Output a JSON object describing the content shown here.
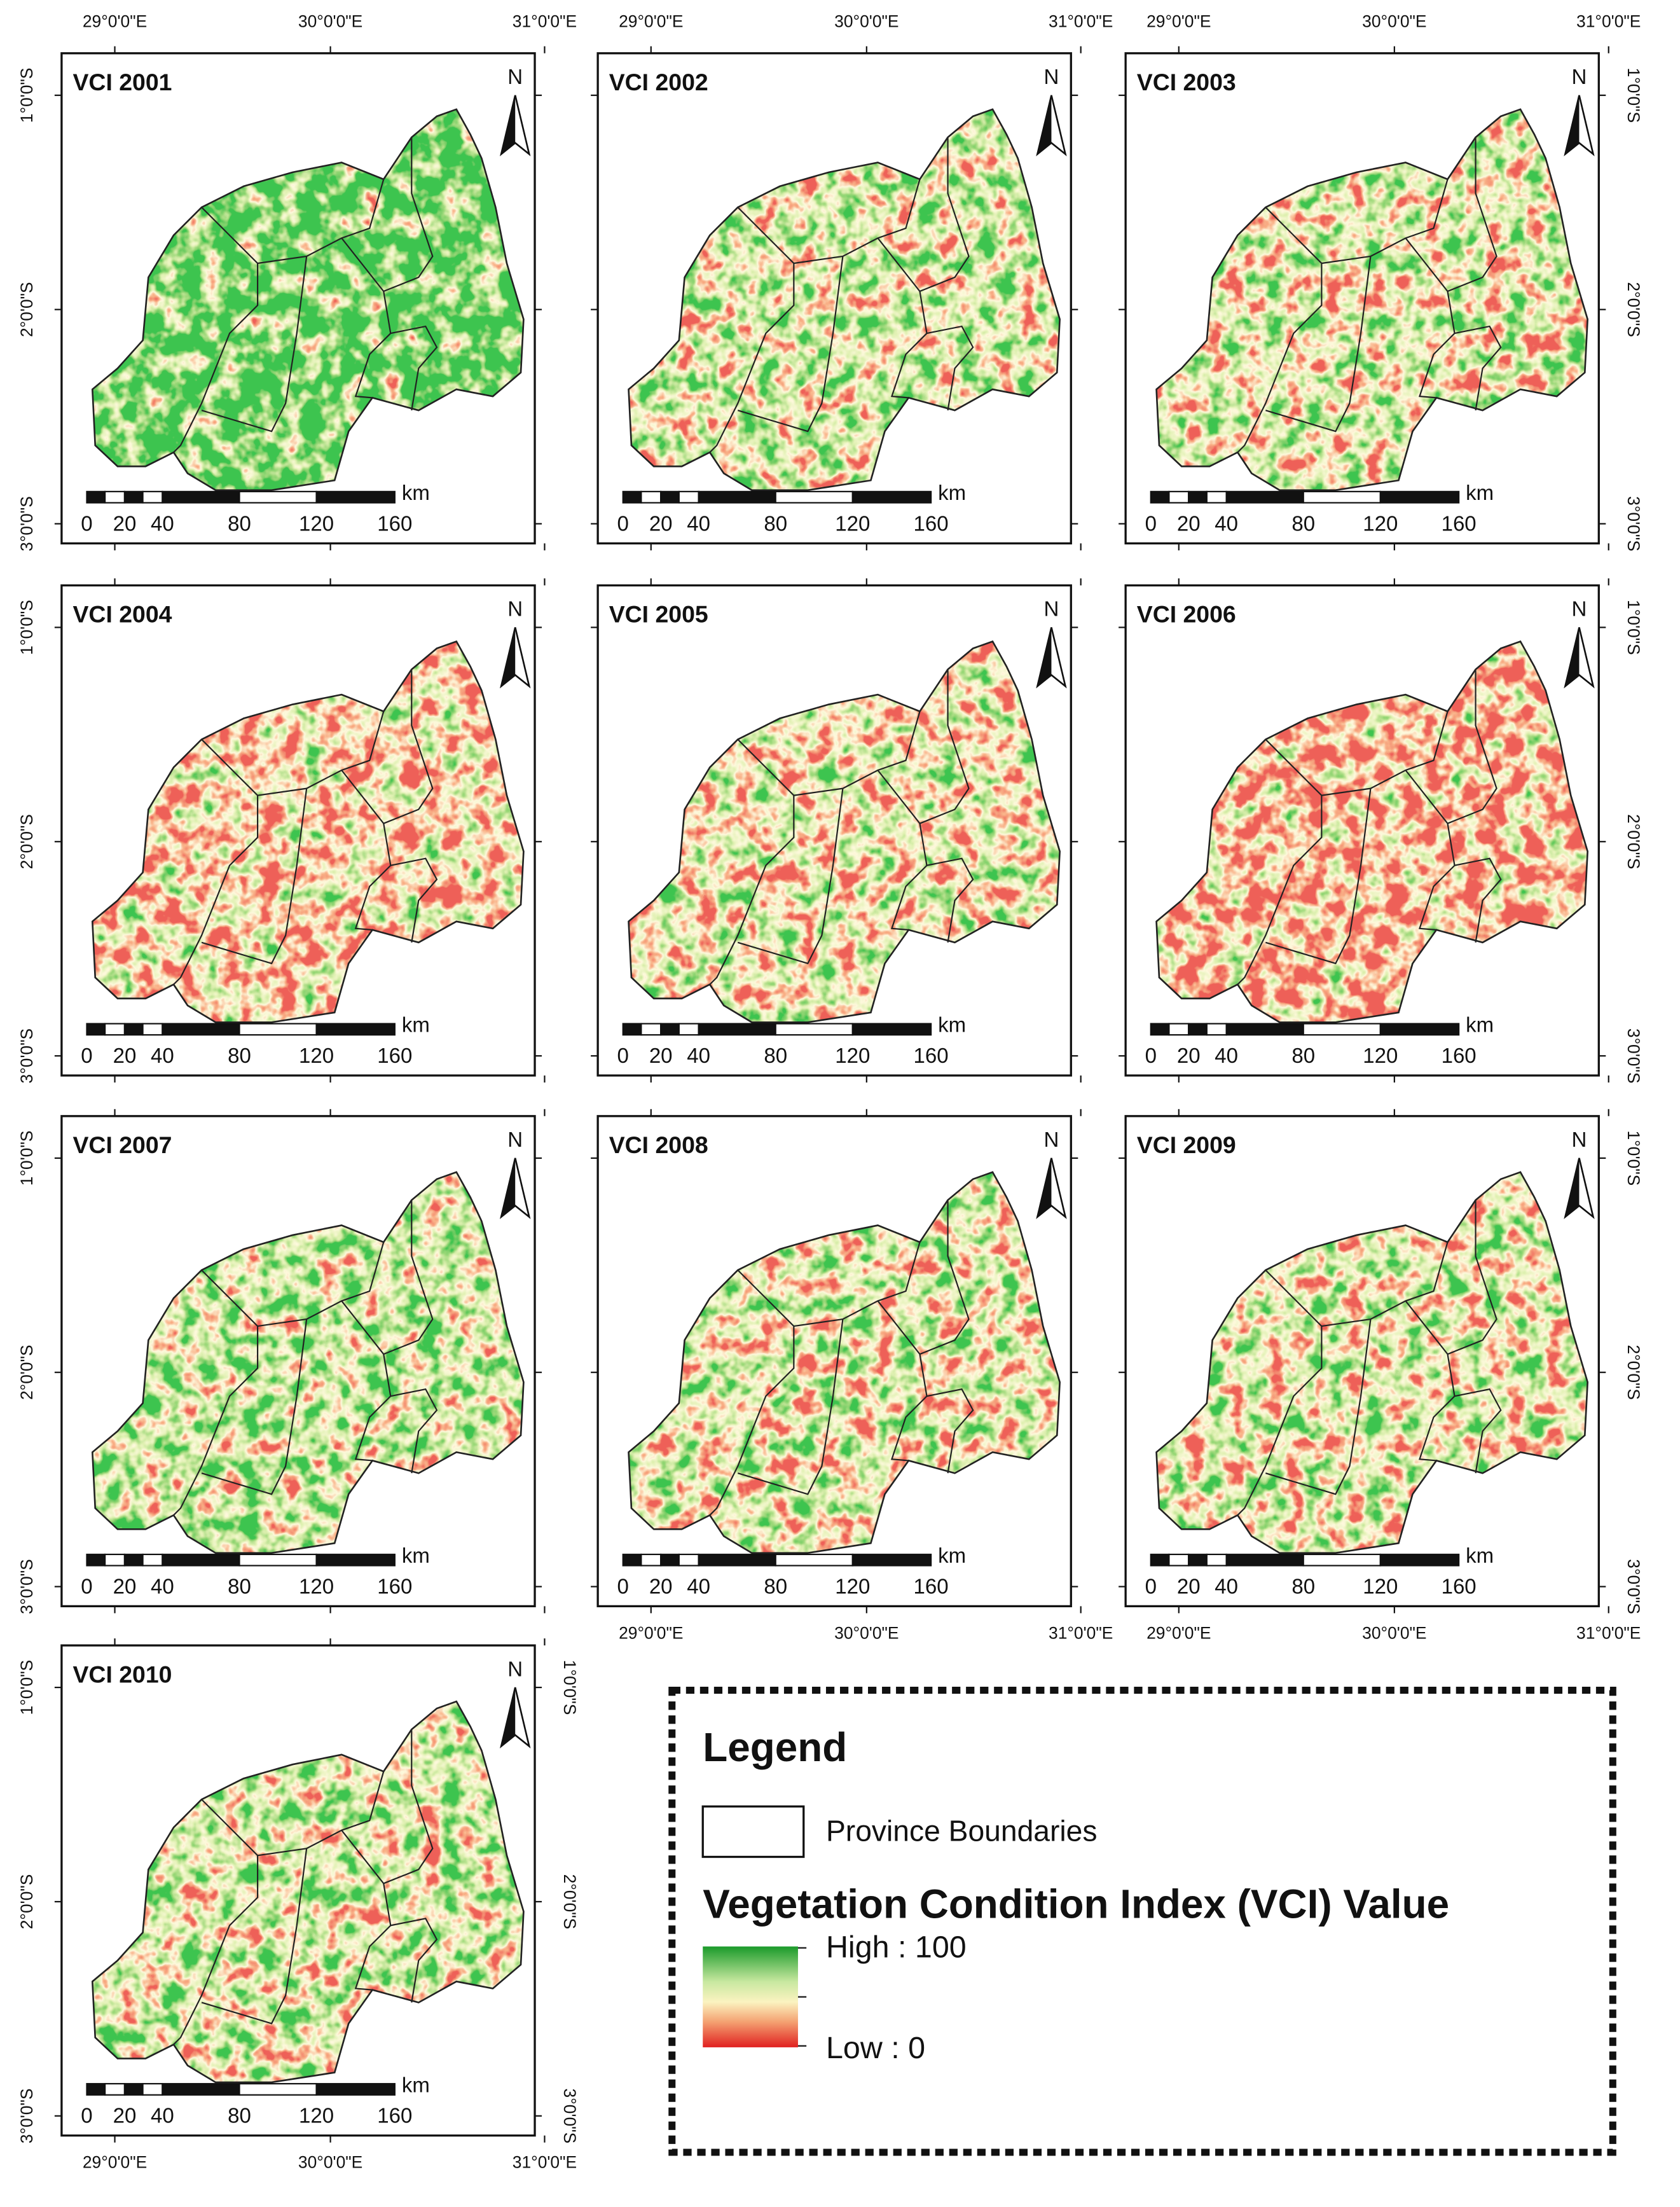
{
  "panels": [
    {
      "title": "VCI 2001"
    },
    {
      "title": "VCI 2002"
    },
    {
      "title": "VCI 2003"
    },
    {
      "title": "VCI 2004"
    },
    {
      "title": "VCI 2005"
    },
    {
      "title": "VCI 2006"
    },
    {
      "title": "VCI 2007"
    },
    {
      "title": "VCI 2008"
    },
    {
      "title": "VCI 2009"
    },
    {
      "title": "VCI 2010"
    }
  ],
  "coordinates": {
    "longitude": [
      "29°0'0\"E",
      "30°0'0\"E",
      "31°0'0\"E"
    ],
    "latitude": [
      "1°0'0\"S",
      "2°0'0\"S",
      "3°0'0\"S"
    ]
  },
  "scale_bar": {
    "labels": [
      "0",
      "20",
      "40",
      "80",
      "120",
      "160"
    ],
    "unit": "km"
  },
  "north_arrow": "N",
  "legend": {
    "title": "Legend",
    "boundary_label": "Province Boundaries",
    "ramp_title": "Vegetation Condition Index (VCI) Value",
    "high": "High : 100",
    "low": "Low : 0"
  }
}
